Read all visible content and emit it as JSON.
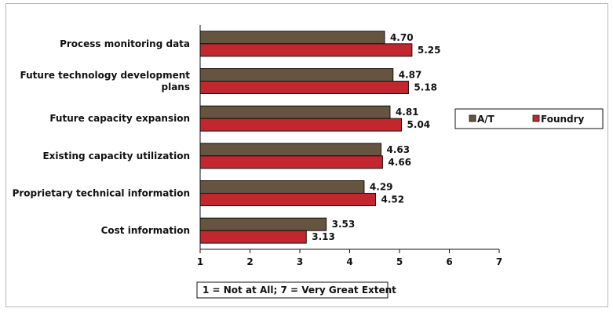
{
  "chart_data": {
    "type": "bar",
    "orientation": "horizontal",
    "categories": [
      "Process monitoring data",
      "Future technology development plans",
      "Future capacity expansion",
      "Existing capacity utilization",
      "Proprietary technical information",
      "Cost information"
    ],
    "category_lines": [
      [
        "Process monitoring data"
      ],
      [
        "Future technology development",
        "plans"
      ],
      [
        "Future capacity expansion"
      ],
      [
        "Existing capacity utilization"
      ],
      [
        "Proprietary technical information"
      ],
      [
        "Cost information"
      ]
    ],
    "series": [
      {
        "name": "A/T",
        "color": "#65543f",
        "values": [
          4.7,
          4.87,
          4.81,
          4.63,
          4.29,
          3.53
        ],
        "labels": [
          "4.70",
          "4.87",
          "4.81",
          "4.63",
          "4.29",
          "3.53"
        ]
      },
      {
        "name": "Foundry",
        "color": "#c1272d",
        "values": [
          5.25,
          5.18,
          5.04,
          4.66,
          4.52,
          3.13
        ],
        "labels": [
          "5.25",
          "5.18",
          "5.04",
          "4.66",
          "4.52",
          "3.13"
        ]
      }
    ],
    "xlim": [
      1,
      7
    ],
    "xticks": [
      "1",
      "2",
      "3",
      "4",
      "5",
      "6",
      "7"
    ],
    "grid": false,
    "legend_position": "right",
    "note": "1 = Not at All; 7 = Very Great Extent"
  }
}
